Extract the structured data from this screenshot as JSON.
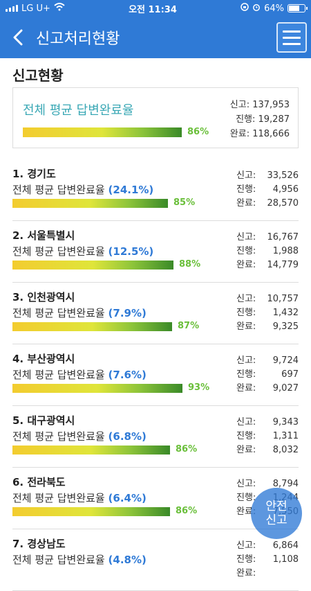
{
  "status": {
    "carrier": "LG U+",
    "time": "오전 11:34",
    "battery": "64%"
  },
  "header": {
    "title": "신고처리현황",
    "back_icon": "chevron-left-icon",
    "menu_icon": "hamburger-icon"
  },
  "section_title": "신고현황",
  "summary": {
    "label": "전체 평균 답변완료율",
    "percent": "86%",
    "fill": 0.86,
    "stats": [
      "신고: 137,953",
      "진행: 19,287",
      "완료: 118,666"
    ]
  },
  "regions": [
    {
      "name": "1. 경기도",
      "label": "전체 평균 답변완료율",
      "rate": "(24.1%)",
      "percent": "85%",
      "fill": 0.85,
      "stats": [
        [
          "신고:",
          "33,526"
        ],
        [
          "진행:",
          "4,956"
        ],
        [
          "완료:",
          "28,570"
        ]
      ]
    },
    {
      "name": "2. 서울특별시",
      "label": "전체 평균 답변완료율",
      "rate": "(12.5%)",
      "percent": "88%",
      "fill": 0.88,
      "stats": [
        [
          "신고:",
          "16,767"
        ],
        [
          "진행:",
          "1,988"
        ],
        [
          "완료:",
          "14,779"
        ]
      ]
    },
    {
      "name": "3. 인천광역시",
      "label": "전체 평균 답변완료율",
      "rate": "(7.9%)",
      "percent": "87%",
      "fill": 0.87,
      "stats": [
        [
          "신고:",
          "10,757"
        ],
        [
          "진행:",
          "1,432"
        ],
        [
          "완료:",
          "9,325"
        ]
      ]
    },
    {
      "name": "4. 부산광역시",
      "label": "전체 평균 답변완료율",
      "rate": "(7.6%)",
      "percent": "93%",
      "fill": 0.93,
      "stats": [
        [
          "신고:",
          "9,724"
        ],
        [
          "진행:",
          "697"
        ],
        [
          "완료:",
          "9,027"
        ]
      ]
    },
    {
      "name": "5. 대구광역시",
      "label": "전체 평균 답변완료율",
      "rate": "(6.8%)",
      "percent": "86%",
      "fill": 0.86,
      "stats": [
        [
          "신고:",
          "9,343"
        ],
        [
          "진행:",
          "1,311"
        ],
        [
          "완료:",
          "8,032"
        ]
      ]
    },
    {
      "name": "6. 전라북도",
      "label": "전체 평균 답변완료율",
      "rate": "(6.4%)",
      "percent": "86%",
      "fill": 0.86,
      "stats": [
        [
          "신고:",
          "8,794"
        ],
        [
          "진행:",
          "1,244"
        ],
        [
          "완료:",
          "7,550"
        ]
      ]
    },
    {
      "name": "7. 경상남도",
      "label": "전체 평균 답변완료율",
      "rate": "(4.8%)",
      "percent": "",
      "fill": 0,
      "stats": [
        [
          "신고:",
          "6,864"
        ],
        [
          "진행:",
          "1,108"
        ],
        [
          "완료:",
          ""
        ]
      ]
    }
  ],
  "safety_button": [
    "안전",
    "신고"
  ],
  "colors": {
    "accent": "#2f7ad6",
    "percent_text": "#6abf3a",
    "label_teal": "#3aa8b5"
  }
}
